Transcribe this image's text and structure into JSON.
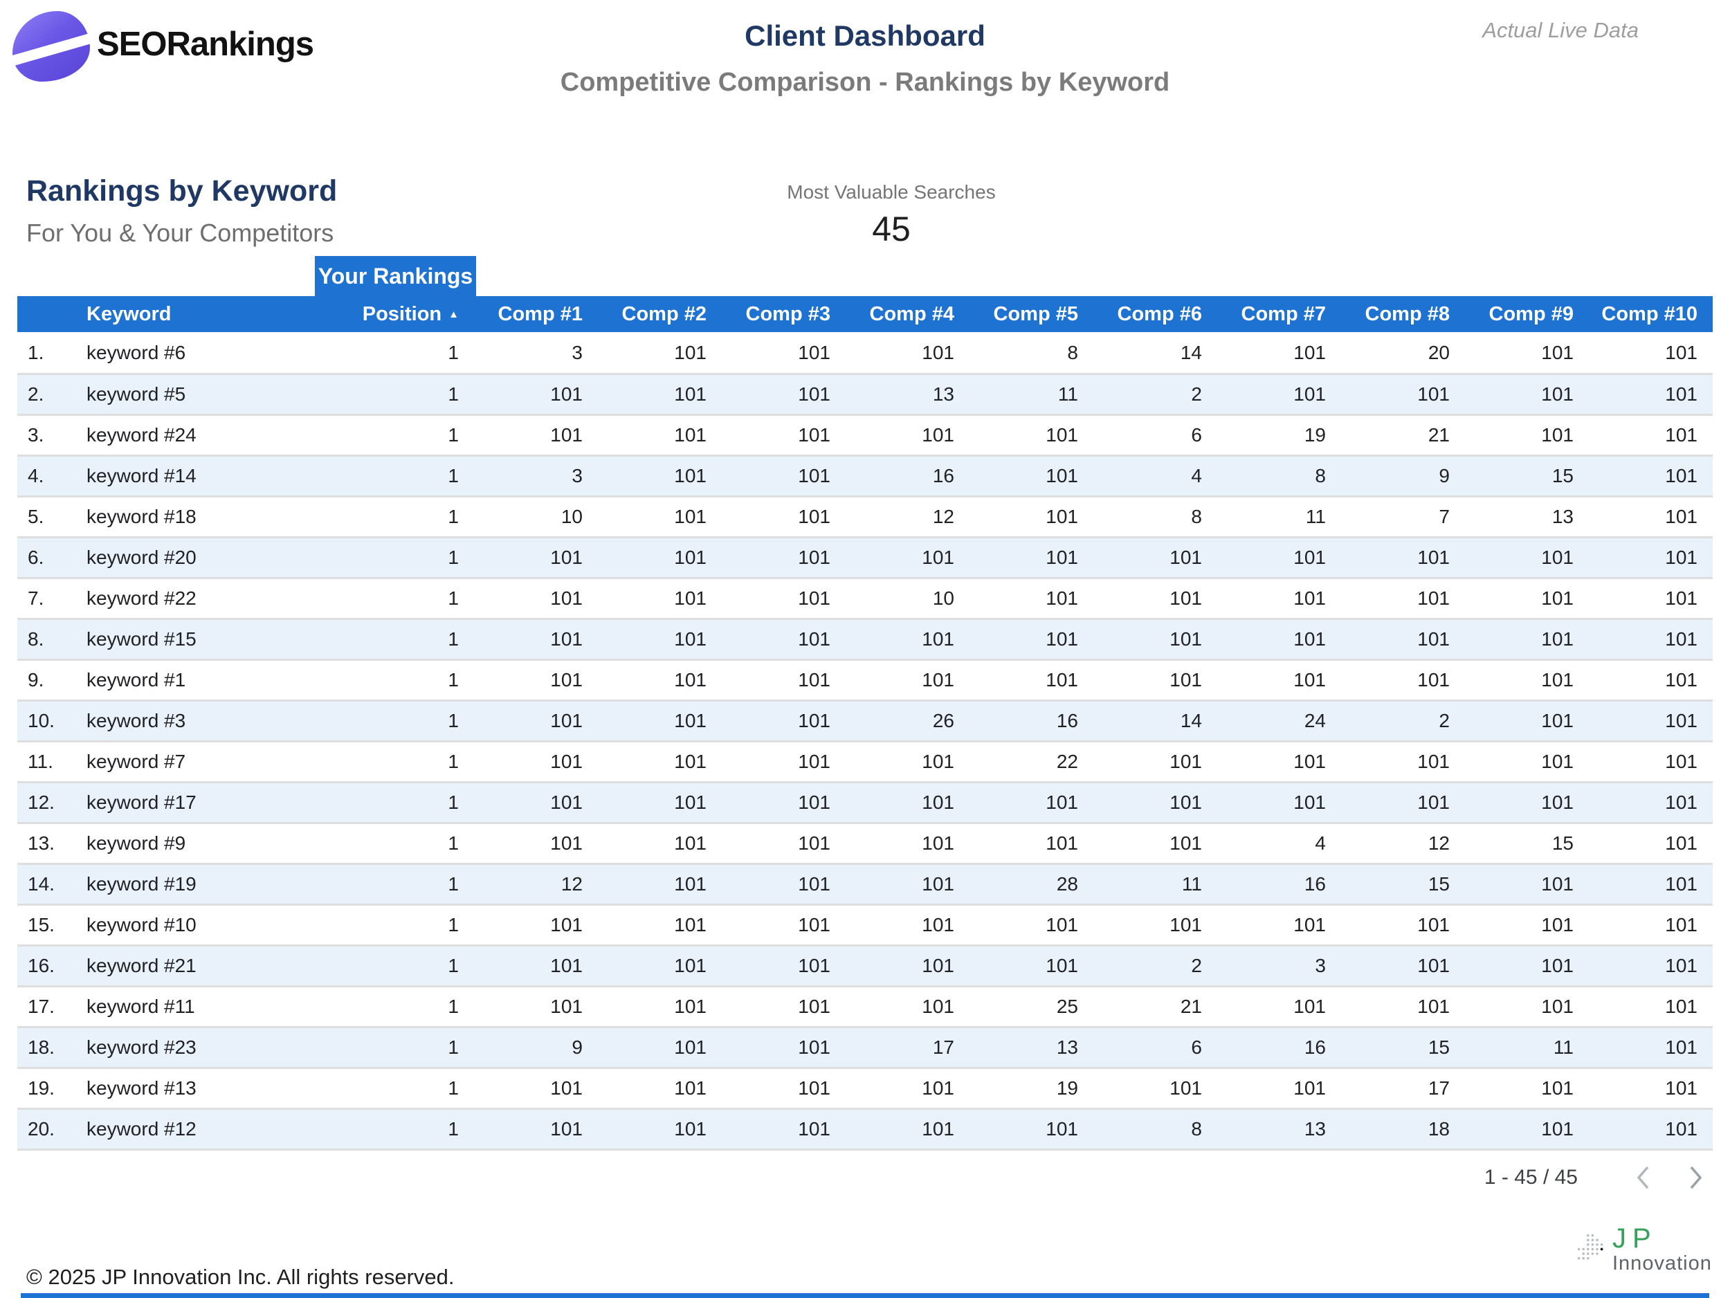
{
  "header": {
    "brand": "SEORankings",
    "title": "Client Dashboard",
    "subtitle": "Competitive Comparison - Rankings by Keyword",
    "watermark": "Actual Live Data"
  },
  "section": {
    "title": "Rankings by Keyword",
    "subtitle": "For You & Your Competitors",
    "tab_label": "Your Rankings"
  },
  "scorecard": {
    "label": "Most Valuable Searches",
    "value": "45"
  },
  "table": {
    "columns": [
      "Keyword",
      "Position",
      "Comp #1",
      "Comp #2",
      "Comp #3",
      "Comp #4",
      "Comp #5",
      "Comp #6",
      "Comp #7",
      "Comp #8",
      "Comp #9",
      "Comp #10"
    ],
    "sorted_column": "Position",
    "sort_indicator": "▲",
    "rows": [
      {
        "num": "1.",
        "keyword": "keyword #6",
        "position": "1",
        "comps": [
          "3",
          "101",
          "101",
          "101",
          "8",
          "14",
          "101",
          "20",
          "101",
          "101"
        ]
      },
      {
        "num": "2.",
        "keyword": "keyword #5",
        "position": "1",
        "comps": [
          "101",
          "101",
          "101",
          "13",
          "11",
          "2",
          "101",
          "101",
          "101",
          "101"
        ]
      },
      {
        "num": "3.",
        "keyword": "keyword #24",
        "position": "1",
        "comps": [
          "101",
          "101",
          "101",
          "101",
          "101",
          "6",
          "19",
          "21",
          "101",
          "101"
        ]
      },
      {
        "num": "4.",
        "keyword": "keyword #14",
        "position": "1",
        "comps": [
          "3",
          "101",
          "101",
          "16",
          "101",
          "4",
          "8",
          "9",
          "15",
          "101"
        ]
      },
      {
        "num": "5.",
        "keyword": "keyword #18",
        "position": "1",
        "comps": [
          "10",
          "101",
          "101",
          "12",
          "101",
          "8",
          "11",
          "7",
          "13",
          "101"
        ]
      },
      {
        "num": "6.",
        "keyword": "keyword #20",
        "position": "1",
        "comps": [
          "101",
          "101",
          "101",
          "101",
          "101",
          "101",
          "101",
          "101",
          "101",
          "101"
        ]
      },
      {
        "num": "7.",
        "keyword": "keyword #22",
        "position": "1",
        "comps": [
          "101",
          "101",
          "101",
          "10",
          "101",
          "101",
          "101",
          "101",
          "101",
          "101"
        ]
      },
      {
        "num": "8.",
        "keyword": "keyword #15",
        "position": "1",
        "comps": [
          "101",
          "101",
          "101",
          "101",
          "101",
          "101",
          "101",
          "101",
          "101",
          "101"
        ]
      },
      {
        "num": "9.",
        "keyword": "keyword #1",
        "position": "1",
        "comps": [
          "101",
          "101",
          "101",
          "101",
          "101",
          "101",
          "101",
          "101",
          "101",
          "101"
        ]
      },
      {
        "num": "10.",
        "keyword": "keyword #3",
        "position": "1",
        "comps": [
          "101",
          "101",
          "101",
          "26",
          "16",
          "14",
          "24",
          "2",
          "101",
          "101"
        ]
      },
      {
        "num": "11.",
        "keyword": "keyword #7",
        "position": "1",
        "comps": [
          "101",
          "101",
          "101",
          "101",
          "22",
          "101",
          "101",
          "101",
          "101",
          "101"
        ]
      },
      {
        "num": "12.",
        "keyword": "keyword #17",
        "position": "1",
        "comps": [
          "101",
          "101",
          "101",
          "101",
          "101",
          "101",
          "101",
          "101",
          "101",
          "101"
        ]
      },
      {
        "num": "13.",
        "keyword": "keyword #9",
        "position": "1",
        "comps": [
          "101",
          "101",
          "101",
          "101",
          "101",
          "101",
          "4",
          "12",
          "15",
          "101"
        ]
      },
      {
        "num": "14.",
        "keyword": "keyword #19",
        "position": "1",
        "comps": [
          "12",
          "101",
          "101",
          "101",
          "28",
          "11",
          "16",
          "15",
          "101",
          "101"
        ]
      },
      {
        "num": "15.",
        "keyword": "keyword #10",
        "position": "1",
        "comps": [
          "101",
          "101",
          "101",
          "101",
          "101",
          "101",
          "101",
          "101",
          "101",
          "101"
        ]
      },
      {
        "num": "16.",
        "keyword": "keyword #21",
        "position": "1",
        "comps": [
          "101",
          "101",
          "101",
          "101",
          "101",
          "2",
          "3",
          "101",
          "101",
          "101"
        ]
      },
      {
        "num": "17.",
        "keyword": "keyword #11",
        "position": "1",
        "comps": [
          "101",
          "101",
          "101",
          "101",
          "25",
          "21",
          "101",
          "101",
          "101",
          "101"
        ]
      },
      {
        "num": "18.",
        "keyword": "keyword #23",
        "position": "1",
        "comps": [
          "9",
          "101",
          "101",
          "17",
          "13",
          "6",
          "16",
          "15",
          "11",
          "101"
        ]
      },
      {
        "num": "19.",
        "keyword": "keyword #13",
        "position": "1",
        "comps": [
          "101",
          "101",
          "101",
          "101",
          "19",
          "101",
          "101",
          "17",
          "101",
          "101"
        ]
      },
      {
        "num": "20.",
        "keyword": "keyword #12",
        "position": "1",
        "comps": [
          "101",
          "101",
          "101",
          "101",
          "101",
          "8",
          "13",
          "18",
          "101",
          "101"
        ]
      }
    ]
  },
  "pagination": {
    "range": "1 - 45 / 45"
  },
  "footer": {
    "copyright": "© 2025 JP Innovation Inc.  All rights reserved.",
    "logo_top": "JP",
    "logo_bottom": "Innovation"
  },
  "colors": {
    "accent_blue": "#1E73D2",
    "navy": "#1F3864",
    "alt_row": "#E9F1FB",
    "purple_1": "#8B7CF4",
    "purple_2": "#5A45D8",
    "green": "#34A257",
    "text_gray": "#757575",
    "watermark_gray": "#9E9E9E",
    "border_gray": "#DEDEDE",
    "chevron_gray": "#A2A6AA"
  }
}
